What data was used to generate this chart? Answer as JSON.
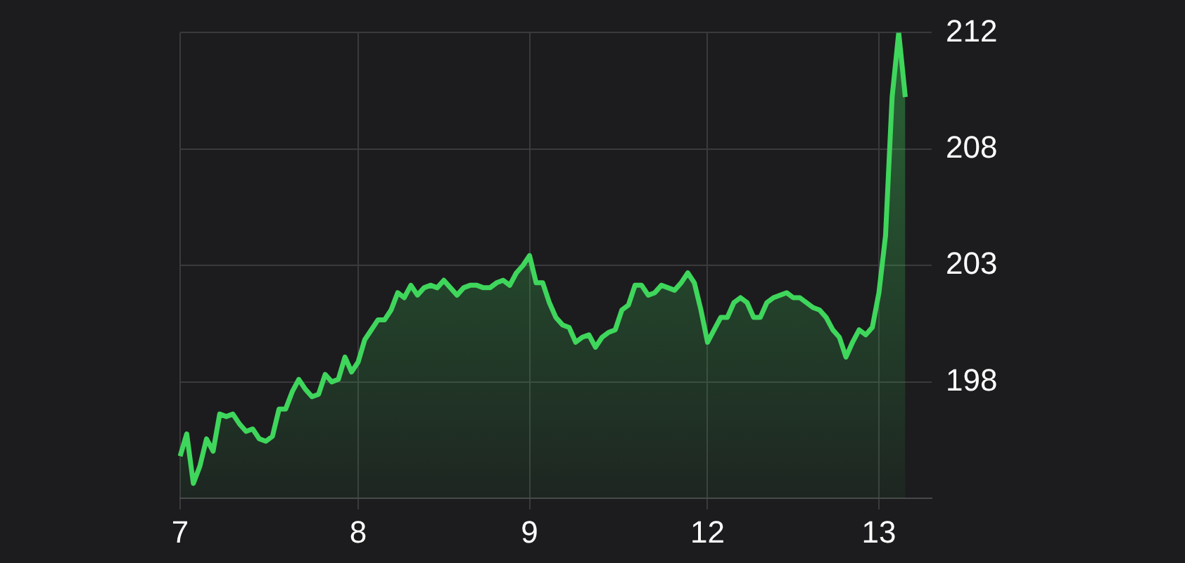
{
  "chart_data": {
    "type": "area",
    "color": "#3fd65c",
    "marker": "none",
    "grid": true,
    "categories": [
      "7",
      null,
      null,
      null,
      null,
      null,
      null,
      null,
      null,
      null,
      null,
      null,
      null,
      null,
      null,
      null,
      null,
      null,
      null,
      null,
      null,
      null,
      null,
      null,
      null,
      null,
      null,
      "8",
      null,
      null,
      null,
      null,
      null,
      null,
      null,
      null,
      null,
      null,
      null,
      null,
      null,
      null,
      null,
      null,
      null,
      null,
      null,
      null,
      null,
      null,
      null,
      null,
      null,
      "9",
      null,
      null,
      null,
      null,
      null,
      null,
      null,
      null,
      null,
      null,
      null,
      null,
      null,
      null,
      null,
      null,
      null,
      null,
      null,
      null,
      null,
      null,
      null,
      null,
      null,
      null,
      "12",
      null,
      null,
      null,
      null,
      null,
      null,
      null,
      null,
      null,
      null,
      null,
      null,
      null,
      null,
      null,
      null,
      null,
      null,
      null,
      null,
      null,
      null,
      null,
      null,
      null,
      "13",
      null,
      null,
      null,
      null,
      null,
      null,
      null,
      null
    ],
    "values": [
      195.4,
      196.3,
      194.3,
      195.0,
      196.1,
      195.6,
      197.1,
      197.0,
      197.1,
      196.7,
      196.4,
      196.5,
      196.1,
      196.0,
      196.2,
      197.3,
      197.3,
      198.0,
      198.5,
      198.1,
      197.8,
      197.9,
      198.7,
      198.4,
      198.5,
      199.4,
      198.8,
      199.2,
      200.1,
      200.5,
      200.9,
      200.9,
      201.3,
      202.0,
      201.8,
      202.3,
      201.9,
      202.2,
      202.3,
      202.2,
      202.5,
      202.2,
      201.9,
      202.2,
      202.3,
      202.3,
      202.2,
      202.2,
      202.4,
      202.5,
      202.3,
      202.8,
      203.1,
      203.5,
      202.4,
      202.4,
      201.6,
      201.0,
      200.7,
      200.6,
      200.0,
      200.2,
      200.3,
      199.8,
      200.2,
      200.4,
      200.5,
      201.3,
      201.5,
      202.3,
      202.3,
      201.9,
      202.0,
      202.3,
      202.2,
      202.1,
      202.4,
      202.8,
      202.4,
      201.3,
      200.0,
      200.5,
      201.0,
      201.0,
      201.6,
      201.8,
      201.6,
      201.0,
      201.0,
      201.6,
      201.8,
      201.9,
      202.0,
      201.8,
      201.8,
      201.6,
      201.4,
      201.3,
      201.0,
      200.5,
      200.2,
      199.4,
      200.0,
      200.5,
      200.3,
      200.6,
      202.0,
      204.3,
      209.9,
      212.5,
      209.9,
      null,
      null,
      null,
      null
    ],
    "ylim": [
      193.7,
      212.5
    ],
    "yticks": [
      {
        "value": 198.4,
        "label": "198"
      },
      {
        "value": 203.1,
        "label": "203"
      },
      {
        "value": 207.8,
        "label": "208"
      },
      {
        "value": 212.5,
        "label": "212"
      }
    ]
  }
}
